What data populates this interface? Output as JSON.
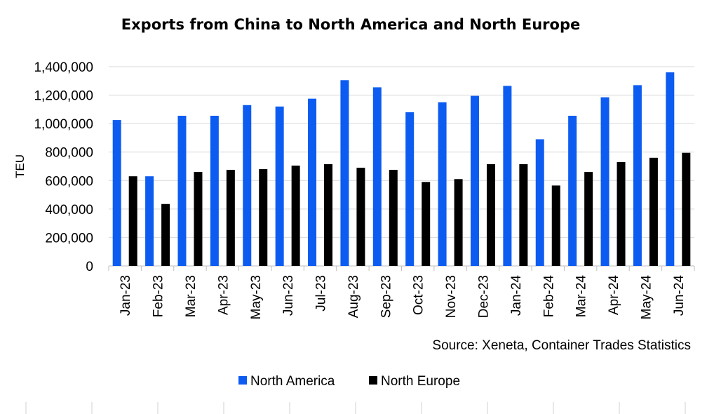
{
  "chart_data": {
    "type": "bar",
    "title": "Exports from China to North America and North Europe",
    "ylabel": "TEU",
    "xlabel": "",
    "ylim": [
      0,
      1400000
    ],
    "yticks": [
      0,
      200000,
      400000,
      600000,
      800000,
      1000000,
      1200000,
      1400000
    ],
    "ytick_labels": [
      "0",
      "200,000",
      "400,000",
      "600,000",
      "800,000",
      "1,000,000",
      "1,200,000",
      "1,400,000"
    ],
    "categories": [
      "Jan-23",
      "Feb-23",
      "Mar-23",
      "Apr-23",
      "May-23",
      "Jun-23",
      "Jul-23",
      "Aug-23",
      "Sep-23",
      "Oct-23",
      "Nov-23",
      "Dec-23",
      "Jan-24",
      "Feb-24",
      "Mar-24",
      "Apr-24",
      "May-24",
      "Jun-24"
    ],
    "series": [
      {
        "name": "North America",
        "color": "#0d5cf2",
        "values": [
          1025000,
          630000,
          1055000,
          1055000,
          1130000,
          1120000,
          1175000,
          1305000,
          1255000,
          1080000,
          1150000,
          1195000,
          1265000,
          890000,
          1055000,
          1185000,
          1270000,
          1360000
        ]
      },
      {
        "name": "North Europe",
        "color": "#000000",
        "values": [
          630000,
          435000,
          660000,
          675000,
          680000,
          705000,
          715000,
          690000,
          675000,
          590000,
          610000,
          715000,
          715000,
          565000,
          660000,
          730000,
          760000,
          795000
        ]
      }
    ],
    "grid": true,
    "legend_position": "bottom",
    "source": "Source: Xeneta, Container Trades Statistics"
  }
}
